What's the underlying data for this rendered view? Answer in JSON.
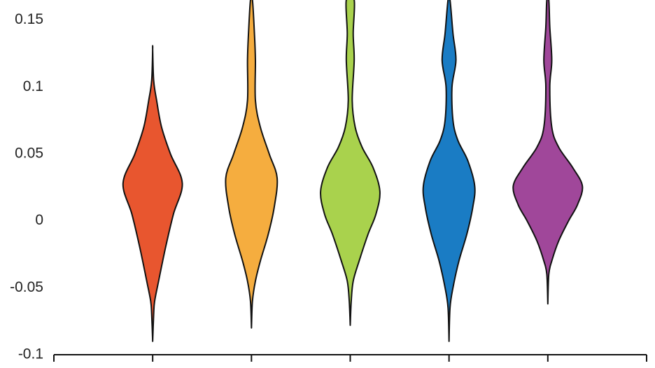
{
  "chart_data": {
    "type": "violin",
    "x": [
      1,
      2,
      3,
      4,
      5
    ],
    "xlim": [
      0,
      6
    ],
    "xticks": [
      0,
      1,
      2,
      3,
      4,
      5,
      6
    ],
    "ylim": [
      -0.1,
      0.165
    ],
    "yticks": [
      0.15,
      0.1,
      0.05,
      0,
      -0.05,
      -0.1
    ],
    "series": [
      {
        "color": "#e8562f",
        "values": [
          -0.09,
          -0.07,
          -0.06,
          -0.045,
          -0.02,
          0.005,
          0.028,
          0.05,
          0.07,
          0.09,
          0.105,
          0.128
        ],
        "widths": [
          0,
          0.01,
          0.02,
          0.06,
          0.13,
          0.21,
          0.3,
          0.18,
          0.09,
          0.04,
          0.01,
          0
        ]
      },
      {
        "color": "#f5ad3f",
        "values": [
          -0.08,
          -0.06,
          -0.045,
          -0.03,
          -0.01,
          0.01,
          0.032,
          0.05,
          0.07,
          0.09,
          0.12,
          0.14,
          0.165
        ],
        "widths": [
          0,
          0.01,
          0.04,
          0.09,
          0.17,
          0.23,
          0.26,
          0.18,
          0.09,
          0.04,
          0.04,
          0.03,
          0.01
        ]
      },
      {
        "color": "#a9d24d",
        "values": [
          -0.078,
          -0.06,
          -0.045,
          -0.03,
          -0.01,
          0.005,
          0.022,
          0.04,
          0.055,
          0.07,
          0.09,
          0.12,
          0.14,
          0.165
        ],
        "widths": [
          0,
          0.01,
          0.03,
          0.09,
          0.18,
          0.26,
          0.3,
          0.23,
          0.12,
          0.05,
          0.02,
          0.04,
          0.03,
          0.04
        ]
      },
      {
        "color": "#1a7cc4",
        "values": [
          -0.09,
          -0.065,
          -0.05,
          -0.03,
          -0.01,
          0.01,
          0.026,
          0.045,
          0.06,
          0.075,
          0.1,
          0.12,
          0.14,
          0.165
        ],
        "widths": [
          0,
          0.01,
          0.04,
          0.1,
          0.18,
          0.24,
          0.26,
          0.19,
          0.09,
          0.04,
          0.03,
          0.07,
          0.04,
          0.01
        ]
      },
      {
        "color": "#a0479a",
        "values": [
          -0.062,
          -0.04,
          -0.03,
          -0.015,
          0,
          0.012,
          0.026,
          0.04,
          0.055,
          0.07,
          0.1,
          0.12,
          0.145,
          0.165
        ],
        "widths": [
          0,
          0.01,
          0.04,
          0.11,
          0.21,
          0.3,
          0.35,
          0.25,
          0.11,
          0.04,
          0.02,
          0.04,
          0.02,
          0.01
        ]
      }
    ]
  }
}
